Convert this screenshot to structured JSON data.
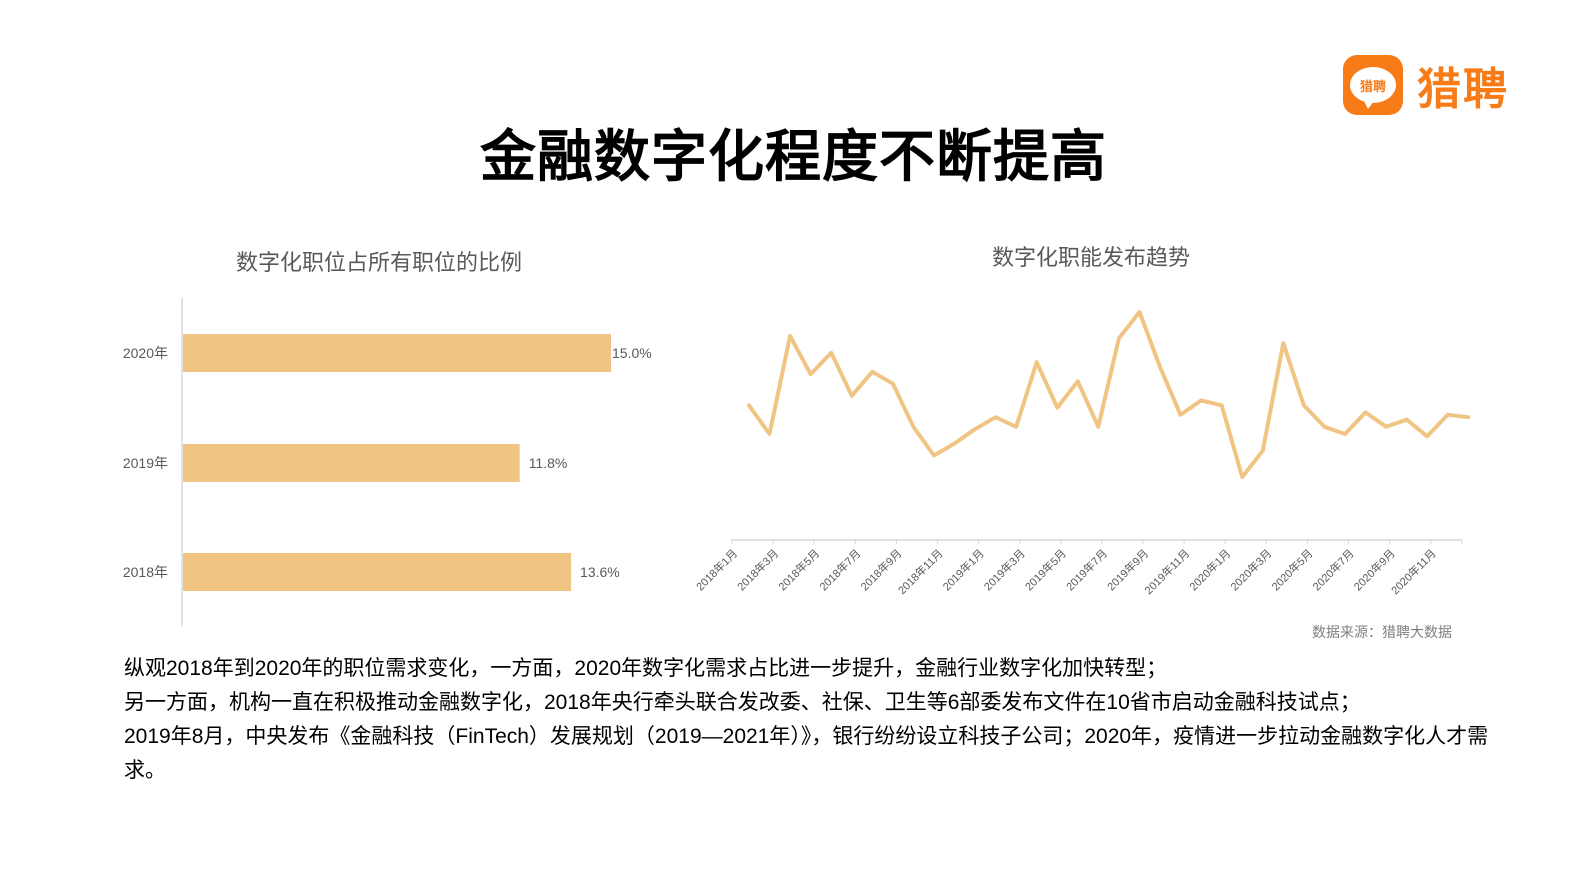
{
  "brand": {
    "name": "猎聘",
    "badge_text": "猎聘",
    "color": "#f77b16"
  },
  "page_title": "金融数字化程度不断提高",
  "bar_chart": {
    "title": "数字化职位占所有职位的比例"
  },
  "line_chart": {
    "title": "数字化职能发布趋势"
  },
  "source_note": "数据来源：猎聘大数据",
  "body_paragraphs": [
    "纵观2018年到2020年的职位需求变化，一方面，2020年数字化需求占比进一步提升，金融行业数字化加快转型；",
    "另一方面，机构一直在积极推动金融数字化，2018年央行牵头联合发改委、社保、卫生等6部委发布文件在10省市启动金融科技试点；",
    "2019年8月，中央发布《金融科技（FinTech）发展规划（2019—2021年）》，银行纷纷设立科技子公司；2020年，疫情进一步拉动金融数字化人才需求。"
  ],
  "colors": {
    "series": "#f0c584",
    "axis": "#d9d9d9",
    "label": "#595959"
  },
  "chart_data": [
    {
      "type": "bar",
      "orientation": "horizontal",
      "title": "数字化职位占所有职位的比例",
      "categories": [
        "2020年",
        "2019年",
        "2018年"
      ],
      "values": [
        15.0,
        11.8,
        13.6
      ],
      "value_labels": [
        "15.0%",
        "11.8%",
        "13.6%"
      ],
      "unit": "%",
      "xlabel": "",
      "ylabel": "",
      "xlim": [
        0,
        15.0
      ],
      "grid": false,
      "legend": "none"
    },
    {
      "type": "line",
      "title": "数字化职能发布趋势",
      "note": "No y-axis shown; values are relative indices (0-100) estimated from line height",
      "x": [
        "2018年1月",
        "2018年2月",
        "2018年3月",
        "2018年4月",
        "2018年5月",
        "2018年6月",
        "2018年7月",
        "2018年8月",
        "2018年9月",
        "2018年10月",
        "2018年11月",
        "2018年12月",
        "2019年1月",
        "2019年2月",
        "2019年3月",
        "2019年4月",
        "2019年5月",
        "2019年6月",
        "2019年7月",
        "2019年8月",
        "2019年9月",
        "2019年10月",
        "2019年11月",
        "2019年12月",
        "2020年1月",
        "2020年2月",
        "2020年3月",
        "2020年4月",
        "2020年5月",
        "2020年6月",
        "2020年7月",
        "2020年8月",
        "2020年9月",
        "2020年10月",
        "2020年11月",
        "2020年12月"
      ],
      "tick_labels": [
        "2018年1月",
        "2018年3月",
        "2018年5月",
        "2018年7月",
        "2018年9月",
        "2018年11月",
        "2019年1月",
        "2019年3月",
        "2019年5月",
        "2019年7月",
        "2019年9月",
        "2019年11月",
        "2020年1月",
        "2020年3月",
        "2020年5月",
        "2020年7月",
        "2020年9月",
        "2020年11月"
      ],
      "series": [
        {
          "name": "数字化职能发布",
          "values": [
            53,
            41,
            82,
            66,
            75,
            57,
            67,
            62,
            44,
            32,
            37,
            43,
            48,
            44,
            71,
            52,
            63,
            44,
            81,
            92,
            69,
            49,
            55,
            53,
            23,
            34,
            79,
            53,
            44,
            41,
            50,
            44,
            47,
            40,
            49,
            48
          ]
        }
      ],
      "xlabel": "",
      "ylabel": "",
      "ylim": [
        0,
        100
      ],
      "grid": false,
      "legend": "none"
    }
  ]
}
